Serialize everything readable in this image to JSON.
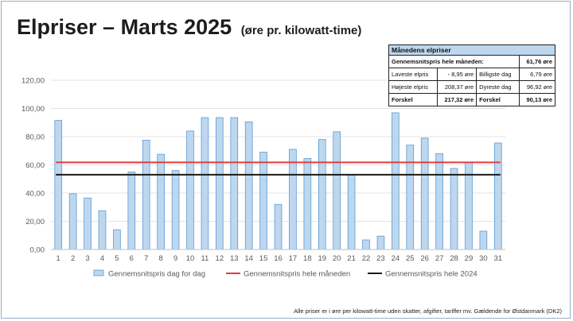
{
  "title": "Elpriser – Marts 2025",
  "subtitle": "(øre pr. kilowatt-time)",
  "footer": "Alle priser er i øre per kilowatt-time uden skatter, afgifter, tariffer mv. Gældende for Østdanmark (DK2)",
  "colors": {
    "bar_fill": "#bdd7ee",
    "bar_stroke": "#5b9bd5",
    "month_avg": "#e03c3c",
    "year_avg": "#1a1a1a",
    "grid": "#e3e3e3",
    "axis_text": "#595959"
  },
  "summary_table": {
    "header": "Månedens elpriser",
    "avg_label": "Gennemsnitspris hele måneden:",
    "avg_value": "61,76 øre",
    "rows": [
      {
        "l1": "Laveste elpris",
        "v1": "- 8,95  øre",
        "l2": "Billigste dag",
        "v2": "6,79 øre"
      },
      {
        "l1": "Højeste elpris",
        "v1": "208,37 øre",
        "l2": "Dyreste dag",
        "v2": "96,92 øre"
      },
      {
        "l1": "Forskel",
        "v1": "217,32 øre",
        "l2": "Forskel",
        "v2": "90,13 øre"
      }
    ]
  },
  "chart_data": {
    "type": "bar",
    "categories": [
      "1",
      "2",
      "3",
      "4",
      "5",
      "6",
      "7",
      "8",
      "9",
      "10",
      "11",
      "12",
      "13",
      "14",
      "15",
      "16",
      "17",
      "18",
      "19",
      "20",
      "21",
      "22",
      "23",
      "24",
      "25",
      "26",
      "27",
      "28",
      "29",
      "30",
      "31"
    ],
    "series": [
      {
        "name": "Gennemsnitspris dag for dag",
        "type": "bar",
        "values": [
          91.5,
          39.5,
          36.5,
          27.5,
          14.0,
          55.0,
          77.5,
          67.5,
          56.0,
          84.0,
          93.5,
          93.5,
          93.5,
          90.5,
          69.0,
          32.0,
          71.0,
          64.5,
          78.0,
          83.5,
          53.0,
          6.79,
          9.5,
          96.92,
          74.0,
          79.0,
          68.0,
          57.5,
          62.0,
          13.0,
          75.5
        ]
      },
      {
        "name": "Gennemsnitspris hele måneden",
        "type": "line",
        "value": 61.76
      },
      {
        "name": "Gennemsnitspris hele 2024",
        "type": "line",
        "value": 53.0
      }
    ],
    "yticks": [
      "0,00",
      "20,00",
      "40,00",
      "60,00",
      "80,00",
      "100,00",
      "120,00"
    ],
    "ylim": [
      0,
      120
    ],
    "grid": true,
    "legend_position": "bottom"
  }
}
